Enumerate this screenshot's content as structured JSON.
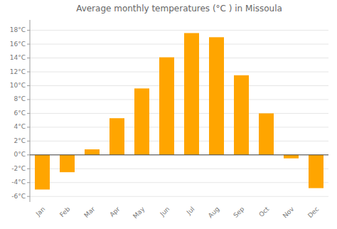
{
  "chart_data": {
    "type": "bar",
    "title": "Average monthly temperatures (°C ) in Missoula",
    "categories": [
      "Jan",
      "Feb",
      "Mar",
      "Apr",
      "May",
      "Jun",
      "Jul",
      "Aug",
      "Sep",
      "Oct",
      "Nov",
      "Dec"
    ],
    "values": [
      -5.0,
      -2.5,
      0.8,
      5.3,
      9.6,
      14.1,
      17.6,
      17.0,
      11.5,
      6.0,
      -0.5,
      -4.8
    ],
    "color": "#FFA500",
    "ylim": [
      -6.8,
      19.5
    ],
    "yticks": [
      {
        "value": -6,
        "label": "-6°C"
      },
      {
        "value": -4,
        "label": "-4°C"
      },
      {
        "value": -2,
        "label": "-2°C"
      },
      {
        "value": 0,
        "label": "0°C"
      },
      {
        "value": 2,
        "label": "2°C"
      },
      {
        "value": 4,
        "label": "4°C"
      },
      {
        "value": 6,
        "label": "6°C"
      },
      {
        "value": 8,
        "label": "8°C"
      },
      {
        "value": 10,
        "label": "10°C"
      },
      {
        "value": 12,
        "label": "12°C"
      },
      {
        "value": 14,
        "label": "14°C"
      },
      {
        "value": 16,
        "label": "16°C"
      },
      {
        "value": 18,
        "label": "18°C"
      }
    ],
    "grid": true
  }
}
